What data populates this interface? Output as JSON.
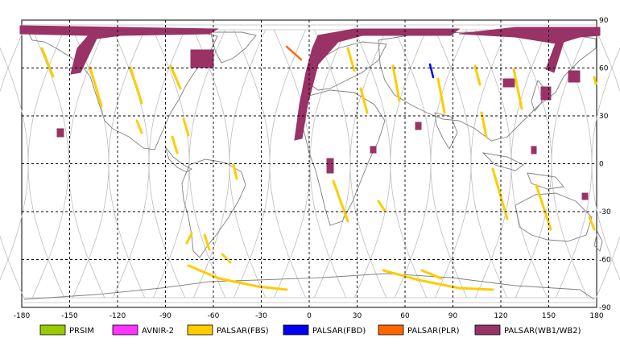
{
  "map": {
    "x_ticks": [
      "-180",
      "-150",
      "-120",
      "-90",
      "-60",
      "-30",
      "0",
      "30",
      "60",
      "90",
      "120",
      "150",
      "180"
    ],
    "y_ticks": [
      "90",
      "60",
      "30",
      "0",
      "-30",
      "-60",
      "-90"
    ],
    "lon_range": [
      -180,
      180
    ],
    "lat_range": [
      -90,
      90
    ],
    "grid": "dashed"
  },
  "legend": [
    {
      "label": "PRSIM",
      "color": "#99cc00"
    },
    {
      "label": "AVNIR-2",
      "color": "#ff33ff"
    },
    {
      "label": "PALSAR(FBS)",
      "color": "#ffcc00"
    },
    {
      "label": "PALSAR(FBD)",
      "color": "#0000ee"
    },
    {
      "label": "PALSAR(PLR)",
      "color": "#ff6600"
    },
    {
      "label": "PALSAR(WB1/WB2)",
      "color": "#993366"
    }
  ]
}
